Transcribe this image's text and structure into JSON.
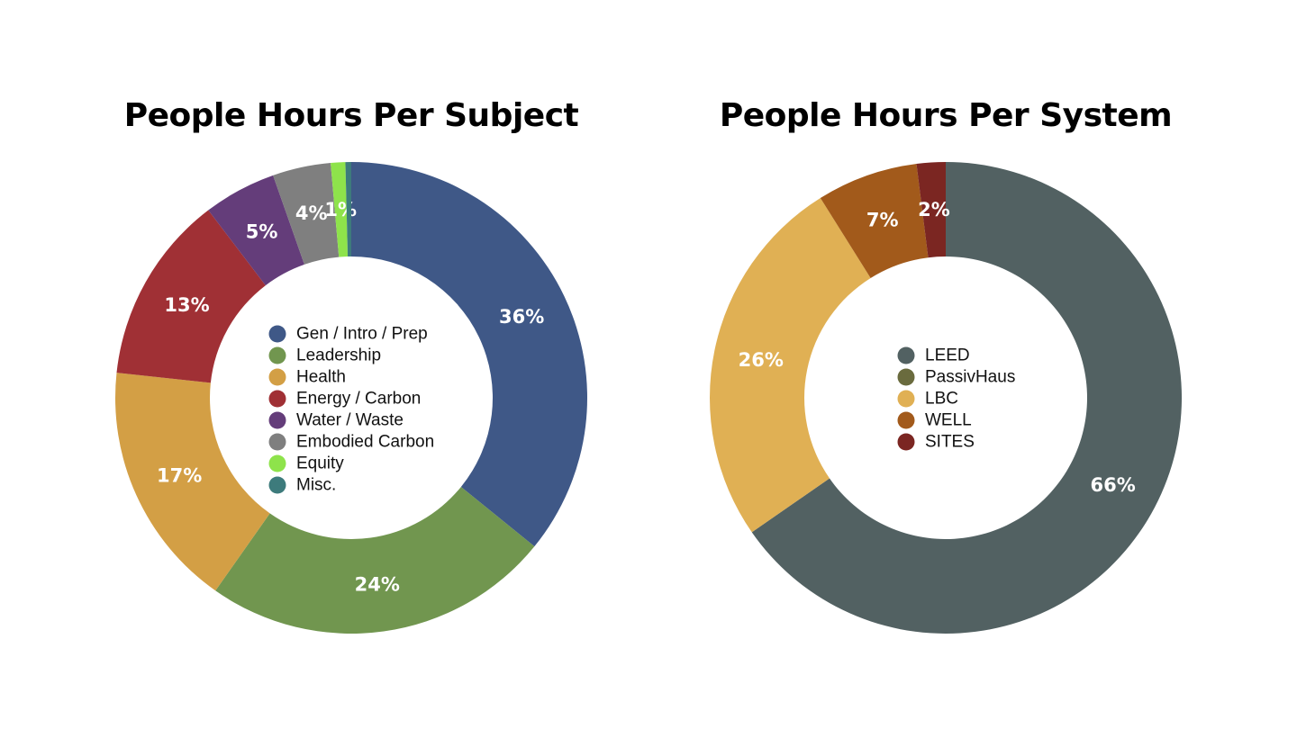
{
  "chart_data": [
    {
      "type": "pie",
      "title": "People Hours Per Subject",
      "legend_position": "center",
      "categories": [
        "Gen / Intro / Prep",
        "Leadership",
        "Health",
        "Energy / Carbon",
        "Water / Waste",
        "Embodied Carbon",
        "Equity",
        "Misc."
      ],
      "values": [
        36,
        24,
        17,
        13,
        5,
        4,
        1,
        0.4
      ],
      "labels": [
        "36%",
        "24%",
        "17%",
        "13%",
        "5%",
        "4%",
        "1%",
        ""
      ],
      "colors": [
        "#3f5887",
        "#71964f",
        "#d39f45",
        "#a03035",
        "#643d7a",
        "#7f7f7f",
        "#8ee34b",
        "#3d7b7c"
      ]
    },
    {
      "type": "pie",
      "title": "People Hours Per System",
      "legend_position": "center",
      "categories": [
        "LEED",
        "PassivHaus",
        "LBC",
        "WELL",
        "SITES"
      ],
      "values": [
        66,
        0,
        26,
        7,
        2
      ],
      "labels": [
        "66%",
        "",
        "26%",
        "7%",
        "2%"
      ],
      "colors": [
        "#526162",
        "#6a6b3e",
        "#e0b054",
        "#a25a1b",
        "#7b2622"
      ]
    }
  ]
}
